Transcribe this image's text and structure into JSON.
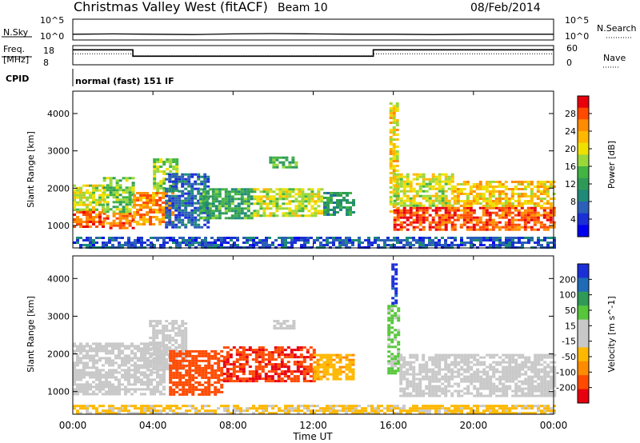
{
  "header": {
    "station": "Christmas Valley West (fitACF)",
    "beam": "Beam 10",
    "date": "08/Feb/2014"
  },
  "chart_data": [
    {
      "type": "line",
      "panel": "noise",
      "ylabel_left": "N.Sky",
      "left_ticks": [
        "10^5",
        "10^0"
      ],
      "right_ticks": [
        "10^5",
        "10^0"
      ],
      "legend_right": "N.Search",
      "x": [
        0,
        2,
        4,
        6,
        8,
        10,
        12,
        14,
        16,
        18,
        20,
        22,
        24
      ],
      "series": [
        {
          "name": "N.Sky",
          "values": [
            1.3,
            1.4,
            1.3,
            1.2,
            1.4,
            1.5,
            1.4,
            1.3,
            1.3,
            1.2,
            1.3,
            1.3,
            1.3
          ]
        }
      ]
    },
    {
      "type": "line",
      "panel": "frequency",
      "ylabel_left": [
        "Freq.",
        "[MHz]"
      ],
      "left_ticks": [
        "18",
        "8"
      ],
      "right_ticks": [
        "60",
        "0"
      ],
      "legend_right": "Nave",
      "series": [
        {
          "name": "Freq.",
          "x": [
            0,
            3.0,
            3.0,
            15.0,
            15.0,
            24
          ],
          "values": [
            16.8,
            16.8,
            12.6,
            12.6,
            16.8,
            16.8
          ]
        },
        {
          "name": "Nave",
          "x": [
            0,
            3.0,
            3.0,
            15.0,
            15.0,
            24
          ],
          "values": [
            35,
            35,
            28,
            28,
            35,
            35
          ]
        }
      ]
    },
    {
      "type": "text",
      "panel": "cpid",
      "ylabel_left": "CPID",
      "program": "normal (fast) 151 IF"
    },
    {
      "type": "heatmap",
      "panel": "power",
      "ylabel": "Slant Range [km]",
      "yticks": [
        "1000",
        "2000",
        "3000",
        "4000"
      ],
      "ylim": [
        400,
        4600
      ],
      "xlim": [
        0,
        24
      ],
      "colorbar": {
        "label": "Power [dB]",
        "ticks": [
          "28",
          "24",
          "20",
          "16",
          "12",
          "8",
          "4"
        ],
        "colors": [
          "#e8000e",
          "#ff4a00",
          "#ff8c00",
          "#ffb800",
          "#f0e000",
          "#9ad83a",
          "#41b443",
          "#2f9a58",
          "#1f8a78",
          "#2b5fb8",
          "#1a2fd6",
          "#0000f0"
        ]
      },
      "regions": [
        {
          "t0": 0.0,
          "t1": 1.5,
          "r0": 950,
          "r1": 1450,
          "level": 27
        },
        {
          "t0": 0.0,
          "t1": 1.5,
          "r0": 1450,
          "r1": 2100,
          "level": 18
        },
        {
          "t0": 1.5,
          "t1": 3.0,
          "r0": 950,
          "r1": 1350,
          "level": 26
        },
        {
          "t0": 1.5,
          "t1": 3.0,
          "r0": 1350,
          "r1": 2300,
          "level": 15
        },
        {
          "t0": 3.0,
          "t1": 5.0,
          "r0": 1050,
          "r1": 1900,
          "level": 24
        },
        {
          "t0": 4.0,
          "t1": 5.2,
          "r0": 1900,
          "r1": 2800,
          "level": 16
        },
        {
          "t0": 4.6,
          "t1": 6.8,
          "r0": 950,
          "r1": 2400,
          "level": 6
        },
        {
          "t0": 6.3,
          "t1": 9.0,
          "r0": 1200,
          "r1": 2000,
          "level": 12
        },
        {
          "t0": 9.0,
          "t1": 12.5,
          "r0": 1250,
          "r1": 2000,
          "level": 18
        },
        {
          "t0": 12.5,
          "t1": 14.0,
          "r0": 1300,
          "r1": 1900,
          "level": 10
        },
        {
          "t0": 9.8,
          "t1": 11.2,
          "r0": 2550,
          "r1": 2850,
          "level": 13
        },
        {
          "t0": 15.8,
          "t1": 16.2,
          "r0": 1400,
          "r1": 4300,
          "level": 20
        },
        {
          "t0": 16.0,
          "t1": 19.0,
          "r0": 900,
          "r1": 1500,
          "level": 28
        },
        {
          "t0": 16.0,
          "t1": 19.0,
          "r0": 1500,
          "r1": 2400,
          "level": 18
        },
        {
          "t0": 19.0,
          "t1": 24.0,
          "r0": 900,
          "r1": 1500,
          "level": 27
        },
        {
          "t0": 19.0,
          "t1": 24.0,
          "r0": 1500,
          "r1": 2200,
          "level": 21
        },
        {
          "t0": 0.0,
          "t1": 24.0,
          "r0": 400,
          "r1": 700,
          "level": 5
        }
      ]
    },
    {
      "type": "heatmap",
      "panel": "velocity",
      "ylabel": "Slant Range [km]",
      "yticks": [
        "1000",
        "2000",
        "3000",
        "4000"
      ],
      "ylim": [
        400,
        4600
      ],
      "xlim": [
        0,
        24
      ],
      "colorbar": {
        "label": "Velocity [m s^-1]",
        "ticks": [
          "200",
          "100",
          "50",
          "15",
          "-15",
          "-50",
          "-100",
          "-200"
        ],
        "colors": [
          "#1a2fd6",
          "#1f6bb8",
          "#2f9a58",
          "#56c63a",
          "#c8c8c8",
          "#c8c8c8",
          "#ffb800",
          "#ff8c00",
          "#ff4a00",
          "#e8000e"
        ]
      },
      "regions": [
        {
          "t0": 0.0,
          "t1": 4.6,
          "r0": 950,
          "r1": 2300,
          "level": 0
        },
        {
          "t0": 3.8,
          "t1": 5.6,
          "r0": 1600,
          "r1": 2900,
          "level": 5
        },
        {
          "t0": 4.8,
          "t1": 7.5,
          "r0": 900,
          "r1": 2100,
          "level": -180
        },
        {
          "t0": 7.5,
          "t1": 12.0,
          "r0": 1300,
          "r1": 2200,
          "level": -200
        },
        {
          "t0": 12.0,
          "t1": 14.0,
          "r0": 1300,
          "r1": 2000,
          "level": -90
        },
        {
          "t0": 10.0,
          "t1": 11.0,
          "r0": 2650,
          "r1": 2900,
          "level": 5
        },
        {
          "t0": 15.9,
          "t1": 16.2,
          "r0": 3300,
          "r1": 4400,
          "level": 220
        },
        {
          "t0": 15.7,
          "t1": 16.3,
          "r0": 1500,
          "r1": 3300,
          "level": 60
        },
        {
          "t0": 16.3,
          "t1": 24.0,
          "r0": 900,
          "r1": 2000,
          "level": 0
        },
        {
          "t0": 0.0,
          "t1": 24.0,
          "r0": 400,
          "r1": 650,
          "level": -60
        }
      ]
    }
  ],
  "x_axis": {
    "label": "Time UT",
    "ticks": [
      "00:00",
      "04:00",
      "08:00",
      "12:00",
      "16:00",
      "20:00",
      "00:00"
    ]
  }
}
